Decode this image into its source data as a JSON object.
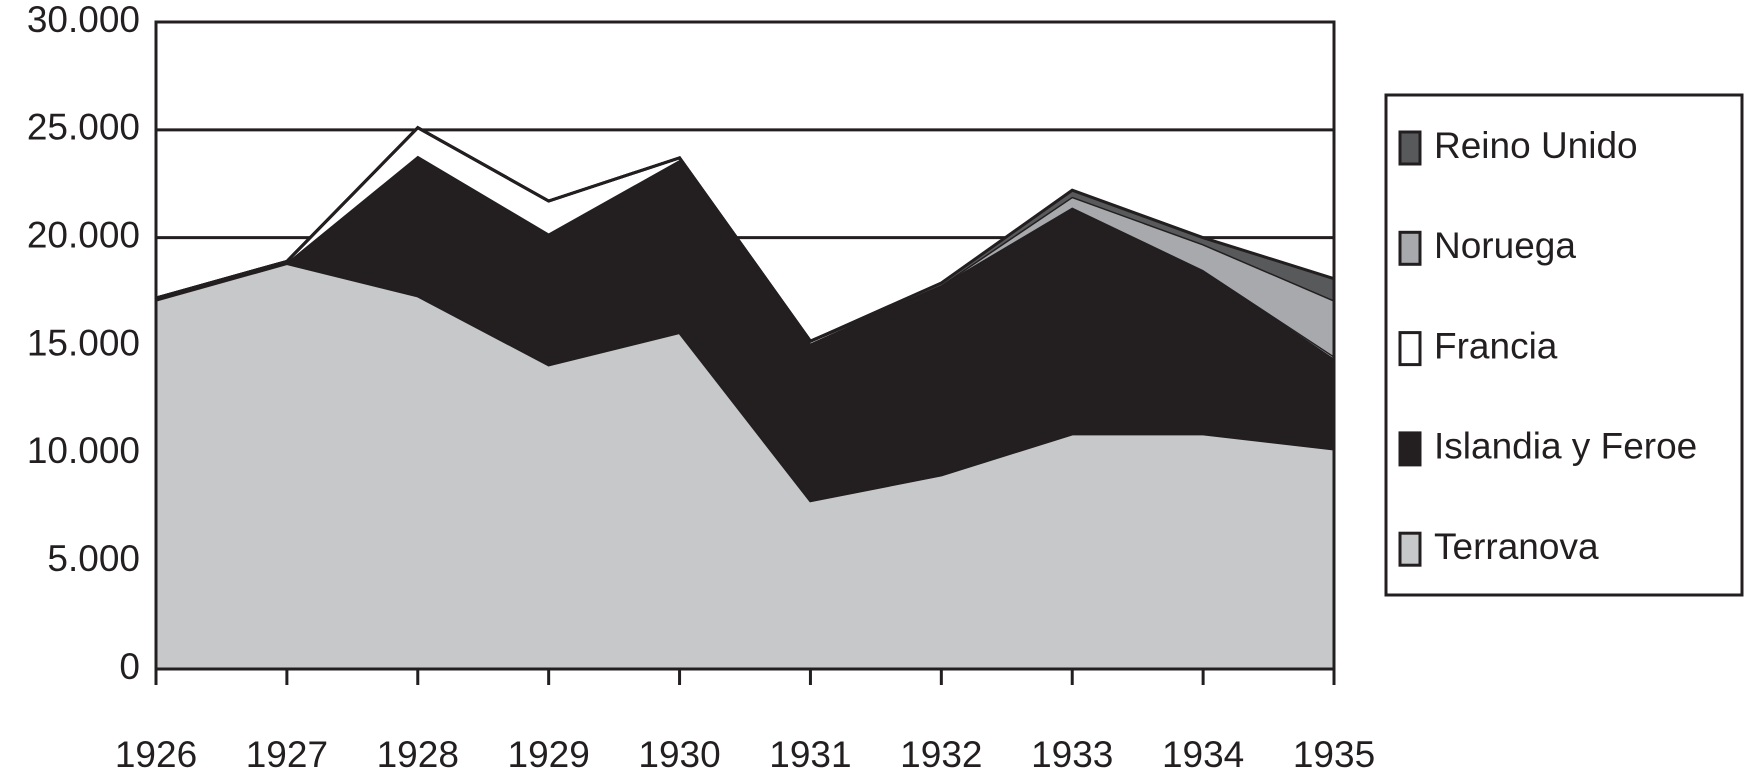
{
  "chart_data": {
    "type": "stacked_area",
    "categories": [
      "1926",
      "1927",
      "1928",
      "1929",
      "1930",
      "1931",
      "1932",
      "1933",
      "1934",
      "1935"
    ],
    "series": [
      {
        "name": "Terranova",
        "color": "#c7c8ca",
        "values": [
          17100,
          18800,
          17300,
          14100,
          15600,
          7800,
          9000,
          10900,
          10900,
          10200
        ]
      },
      {
        "name": "Islandia y Feroe",
        "color": "#231f20",
        "values": [
          100,
          50,
          6500,
          6100,
          8000,
          7300,
          8800,
          10500,
          7600,
          4200
        ]
      },
      {
        "name": "Francia",
        "color": "#ffffff",
        "values": [
          0,
          50,
          1300,
          1500,
          100,
          100,
          0,
          0,
          0,
          100
        ]
      },
      {
        "name": "Noruega",
        "color": "#a7a9ac",
        "values": [
          0,
          0,
          0,
          0,
          0,
          0,
          0,
          500,
          1200,
          2600
        ]
      },
      {
        "name": "Reino Unido",
        "color": "#58595b",
        "values": [
          0,
          0,
          0,
          0,
          0,
          0,
          100,
          300,
          300,
          1000
        ]
      }
    ],
    "ylim": [
      0,
      30000
    ],
    "yticks": [
      0,
      {
        "value": 5000,
        "label": "5.000"
      },
      {
        "value": 10000,
        "label": "10.000"
      },
      {
        "value": 15000,
        "label": "15.000"
      },
      {
        "value": 20000,
        "label": "20.000"
      },
      {
        "value": 25000,
        "label": "25.000"
      },
      {
        "value": 30000,
        "label": "30.000"
      }
    ],
    "grid": true,
    "legend": "right"
  }
}
